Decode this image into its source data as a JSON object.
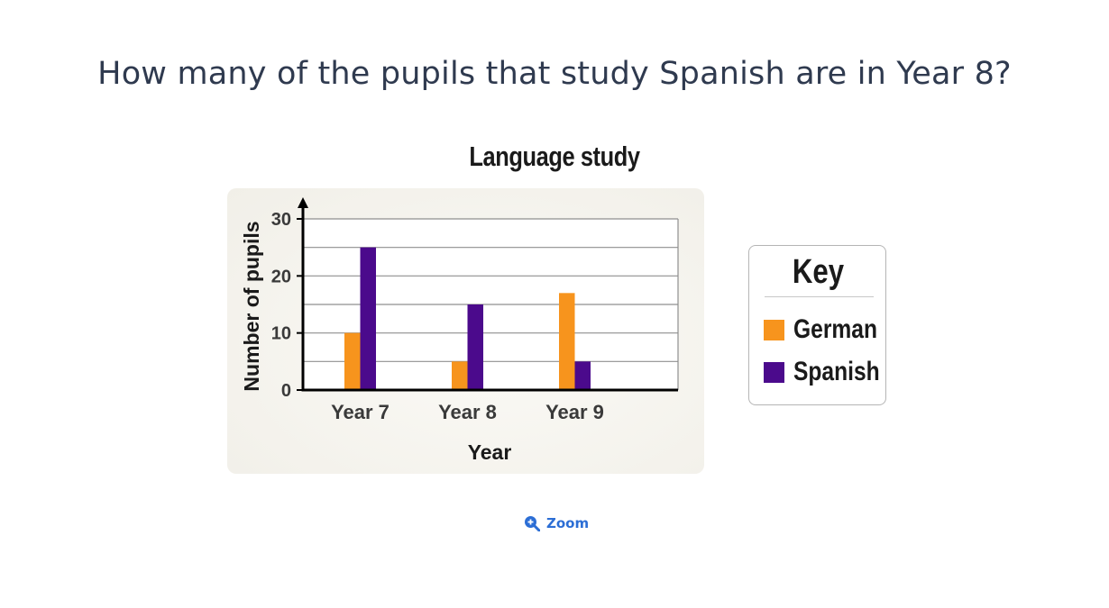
{
  "question": {
    "text": "How many of the pupils that study Spanish are in Year 8?"
  },
  "chart_data": {
    "type": "bar",
    "title": "Language study",
    "xlabel": "Year",
    "ylabel": "Number of pupils",
    "categories": [
      "Year 7",
      "Year 8",
      "Year 9"
    ],
    "series": [
      {
        "name": "German",
        "values": [
          10,
          5,
          17
        ],
        "color": "#f7941d"
      },
      {
        "name": "Spanish",
        "values": [
          25,
          15,
          5
        ],
        "color": "#4b0a8c"
      }
    ],
    "ylim": [
      0,
      30
    ],
    "y_ticks": [
      0,
      10,
      20,
      30
    ],
    "y_tick_labels": [
      "0",
      "10",
      "20",
      "30"
    ],
    "minor_gridlines": [
      5,
      15,
      25
    ],
    "grid": true,
    "legend": {
      "title": "Key",
      "placement": "right"
    }
  },
  "zoom": {
    "label": "Zoom",
    "icon": "zoom-in-icon",
    "color": "#2c6ed5"
  }
}
